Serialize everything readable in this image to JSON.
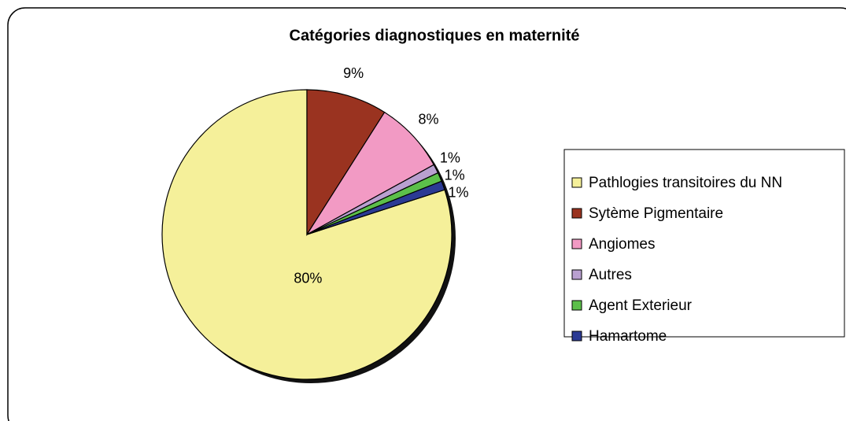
{
  "chart_data": {
    "type": "pie",
    "title": "Catégories diagnostiques en maternité",
    "categories": [
      "Pathlogies transitoires du NN",
      "Sytème Pigmentaire",
      "Angiomes",
      "Autres",
      "Agent Exterieur",
      "Hamartome"
    ],
    "values": [
      80,
      9,
      8,
      1,
      1,
      1
    ],
    "value_labels": [
      "80%",
      "9%",
      "8%",
      "1%",
      "1%",
      "1%"
    ],
    "colors": [
      "#f5f09a",
      "#9a3320",
      "#f29ac4",
      "#b9a0d0",
      "#5cbf4a",
      "#2b3a94"
    ],
    "legend": "right"
  }
}
